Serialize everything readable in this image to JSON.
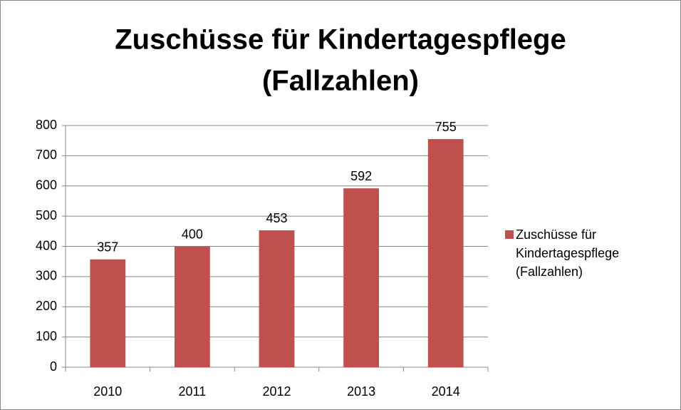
{
  "chart_data": {
    "type": "bar",
    "title": [
      "Zuschüsse für Kindertagespflege",
      "(Fallzahlen)"
    ],
    "categories": [
      "2010",
      "2011",
      "2012",
      "2013",
      "2014"
    ],
    "series": [
      {
        "name": "Zuschüsse für Kindertagespflege (Fallzahlen)",
        "color": "#c0504d",
        "values": [
          357,
          400,
          453,
          592,
          755
        ]
      }
    ],
    "ylim": [
      0,
      800
    ],
    "yticks": [
      0,
      100,
      200,
      300,
      400,
      500,
      600,
      700,
      800
    ],
    "grid": true,
    "legend": "right"
  }
}
